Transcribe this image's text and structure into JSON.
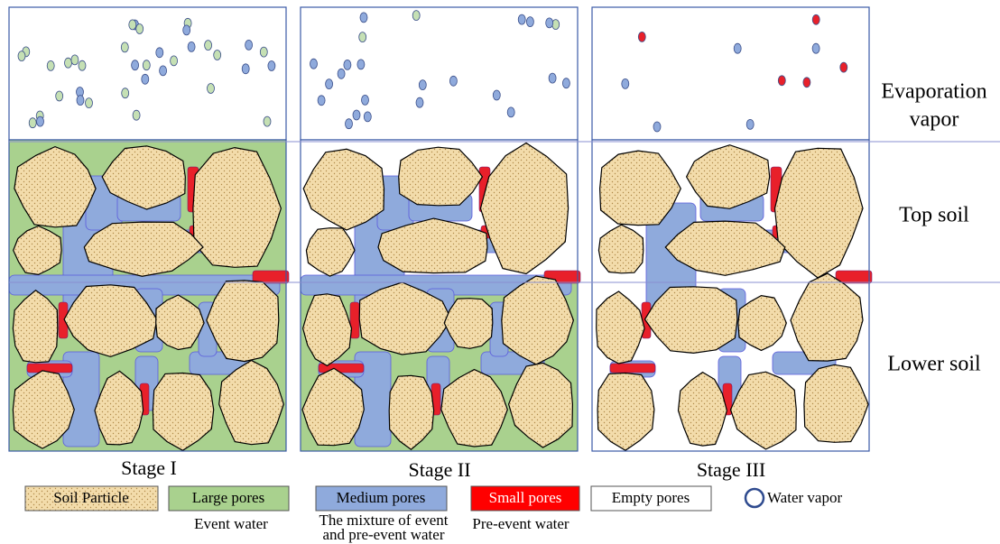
{
  "layers": [
    {
      "lines": [
        "Evaporation",
        "vapor"
      ]
    },
    {
      "lines": [
        "Top soil"
      ]
    },
    {
      "lines": [
        "Lower soil"
      ]
    }
  ],
  "stages": [
    "Stage I",
    "Stage II",
    "Stage III"
  ],
  "legend": [
    {
      "label": "Soil Particle"
    },
    {
      "label": "Large pores",
      "note": [
        "Event water"
      ]
    },
    {
      "label": "Medium pores",
      "note": [
        "The mixture of event",
        "and pre-event water"
      ]
    },
    {
      "label": "Small pores",
      "note": [
        "Pre-event water"
      ]
    },
    {
      "label": "Empty pores"
    },
    {
      "label": "Water vapor"
    }
  ]
}
